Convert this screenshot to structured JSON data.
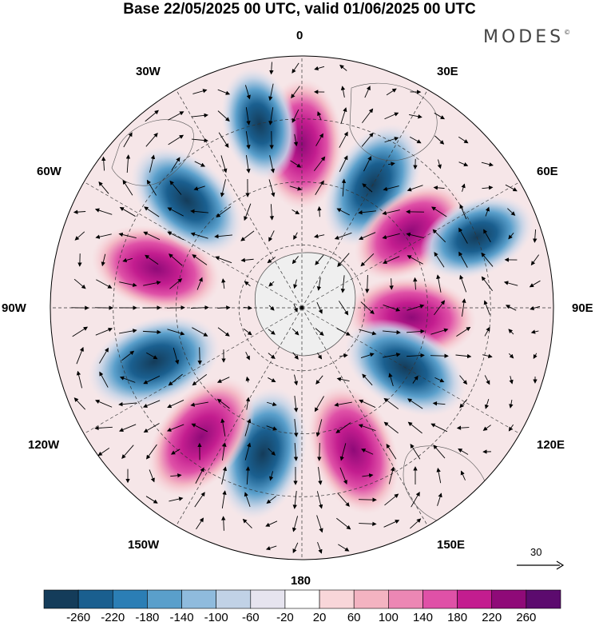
{
  "title": "Base 22/05/2025 00 UTC, valid 01/06/2025 00 UTC",
  "brand": "MODES",
  "brand_mark": "©",
  "longitude_labels": {
    "n0": "0",
    "e30": "30E",
    "e60": "60E",
    "e90": "90E",
    "e120": "120E",
    "e150": "150E",
    "s180": "180",
    "w150": "150W",
    "w120": "120W",
    "w90": "90W",
    "w60": "60W",
    "w30": "30W"
  },
  "reference_vector_label": "30",
  "colorbar": {
    "ticks": [
      "-260",
      "-220",
      "-180",
      "-140",
      "-100",
      "-60",
      "-20",
      "20",
      "60",
      "100",
      "140",
      "180",
      "220",
      "260"
    ],
    "colors": [
      "#143c5a",
      "#1a5f8f",
      "#2b7eb5",
      "#5a9fcb",
      "#8fbbdd",
      "#c1d2e6",
      "#e6e4ef",
      "#ffffff",
      "#f8d6d9",
      "#f3b3c1",
      "#ec87b4",
      "#df51a7",
      "#c31d8f",
      "#8f0a78",
      "#5c0b6e"
    ]
  },
  "map_data": {
    "projection": "south-polar-stereographic",
    "field_centers": [
      {
        "lon": 0,
        "lat": -38,
        "value": 230
      },
      {
        "lon": 30,
        "lat": -45,
        "value": -240
      },
      {
        "lon": 55,
        "lat": -48,
        "value": 190
      },
      {
        "lon": 68,
        "lat": -30,
        "value": -160
      },
      {
        "lon": 95,
        "lat": -55,
        "value": 220
      },
      {
        "lon": 120,
        "lat": -52,
        "value": -230
      },
      {
        "lon": 160,
        "lat": -42,
        "value": 240
      },
      {
        "lon": 195,
        "lat": -42,
        "value": -250
      },
      {
        "lon": 218,
        "lat": -38,
        "value": 250
      },
      {
        "lon": 250,
        "lat": -40,
        "value": -260
      },
      {
        "lon": 285,
        "lat": -42,
        "value": 230
      },
      {
        "lon": 313,
        "lat": -40,
        "value": -230
      },
      {
        "lon": 347,
        "lat": -30,
        "value": -140
      }
    ]
  }
}
